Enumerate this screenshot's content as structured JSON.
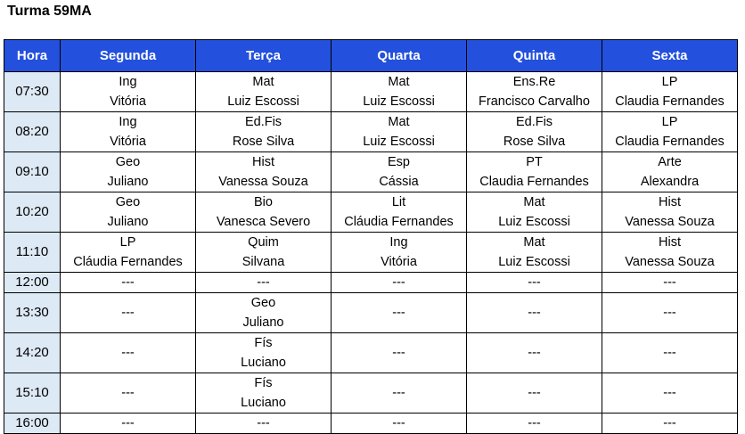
{
  "title": "Turma 59MA",
  "headers": [
    "Hora",
    "Segunda",
    "Terça",
    "Quarta",
    "Quinta",
    "Sexta"
  ],
  "rows": [
    {
      "time": "07:30",
      "cells": [
        [
          "Ing",
          "Vitória"
        ],
        [
          "Mat",
          "Luiz Escossi"
        ],
        [
          "Mat",
          "Luiz Escossi"
        ],
        [
          "Ens.Re",
          "Francisco Carvalho"
        ],
        [
          "LP",
          "Claudia Fernandes"
        ]
      ]
    },
    {
      "time": "08:20",
      "cells": [
        [
          "Ing",
          "Vitória"
        ],
        [
          "Ed.Fis",
          "Rose Silva"
        ],
        [
          "Mat",
          "Luiz Escossi"
        ],
        [
          "Ed.Fis",
          "Rose Silva"
        ],
        [
          "LP",
          "Claudia Fernandes"
        ]
      ]
    },
    {
      "time": "09:10",
      "cells": [
        [
          "Geo",
          "Juliano"
        ],
        [
          "Hist",
          "Vanessa Souza"
        ],
        [
          "Esp",
          "Cássia"
        ],
        [
          "PT",
          "Claudia Fernandes"
        ],
        [
          "Arte",
          "Alexandra"
        ]
      ]
    },
    {
      "time": "10:20",
      "cells": [
        [
          "Geo",
          "Juliano"
        ],
        [
          "Bio",
          "Vanesca Severo"
        ],
        [
          "Lit",
          "Cláudia Fernandes"
        ],
        [
          "Mat",
          "Luiz Escossi"
        ],
        [
          "Hist",
          "Vanessa Souza"
        ]
      ]
    },
    {
      "time": "11:10",
      "cells": [
        [
          "LP",
          "Cláudia Fernandes"
        ],
        [
          "Quim",
          "Silvana"
        ],
        [
          "Ing",
          "Vitória"
        ],
        [
          "Mat",
          "Luiz Escossi"
        ],
        [
          "Hist",
          "Vanessa Souza"
        ]
      ]
    },
    {
      "time": "12:00",
      "short": true,
      "cells": [
        [
          "---"
        ],
        [
          "---"
        ],
        [
          "---"
        ],
        [
          "---"
        ],
        [
          "---"
        ]
      ]
    },
    {
      "time": "13:30",
      "cells": [
        [
          "---"
        ],
        [
          "Geo",
          "Juliano"
        ],
        [
          "---"
        ],
        [
          "---"
        ],
        [
          "---"
        ]
      ]
    },
    {
      "time": "14:20",
      "cells": [
        [
          "---"
        ],
        [
          "Fís",
          "Luciano"
        ],
        [
          "---"
        ],
        [
          "---"
        ],
        [
          "---"
        ]
      ]
    },
    {
      "time": "15:10",
      "cells": [
        [
          "---"
        ],
        [
          "Fís",
          "Luciano"
        ],
        [
          "---"
        ],
        [
          "---"
        ],
        [
          "---"
        ]
      ]
    },
    {
      "time": "16:00",
      "short": true,
      "cells": [
        [
          "---"
        ],
        [
          "---"
        ],
        [
          "---"
        ],
        [
          "---"
        ],
        [
          "---"
        ]
      ]
    }
  ],
  "colors": {
    "header_bg": "#2350dc",
    "hora_bg": "#dde9f5"
  }
}
